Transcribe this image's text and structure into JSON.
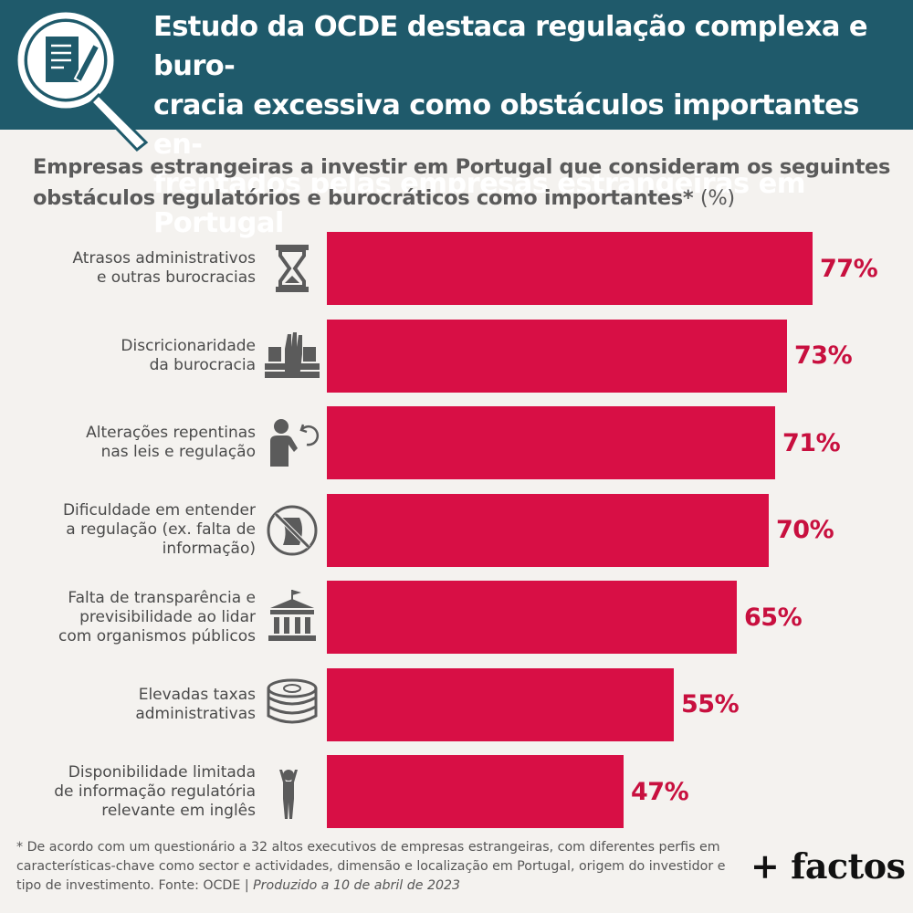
{
  "header": {
    "title": "Estudo da OCDE destaca regulação complexa e burocracia excessiva como obstáculos importantes enfrentados pelas empresas estrangeiras em Portugal",
    "title_lines": [
      "Estudo da OCDE destaca regulação complexa e buro-",
      "cracia excessiva como obstáculos importantes en-",
      "frentados pelas empresas estrangeiras em Portugal"
    ],
    "icon": "magnifier-document-icon"
  },
  "chart_data": {
    "type": "bar",
    "orientation": "horizontal",
    "title": "Empresas estrangeiras a investir em Portugal que consideram os seguintes obstáculos regulatórios e burocráticos como importantes*",
    "title_lines": [
      "Empresas estrangeiras a investir em Portugal que consideram os seguintes",
      "obstáculos regulatórios e burocráticos como importantes*"
    ],
    "unit_label": "(%)",
    "xlim": [
      0,
      77
    ],
    "bar_color": "#d80f45",
    "value_color": "#c8103f",
    "categories": [
      "Atrasos administrativos\ne outras burocracias",
      "Discricionaridade\nda burocracia",
      "Alterações repentinas\nnas leis e regulação",
      "Dificuldade em entender\na regulação (ex. falta de\ninformação)",
      "Falta de transparência e\nprevisibilidade ao lidar\ncom organismos públicos",
      "Elevadas taxas\nadministrativas",
      "Disponibilidade limitada\nde informação regulatória\nrelevante em inglês"
    ],
    "values": [
      77,
      73,
      71,
      70,
      65,
      55,
      47
    ],
    "value_labels": [
      "77%",
      "73%",
      "71%",
      "70%",
      "65%",
      "55%",
      "47%"
    ],
    "icons": [
      "hourglass-icon",
      "raised-hand-books-icon",
      "person-rotate-icon",
      "no-document-icon",
      "government-building-icon",
      "coins-icon",
      "confused-person-icon"
    ]
  },
  "footnote": {
    "main": "* De acordo com um questionário a 32 altos executivos de empresas estrangeiras, com diferentes perfis em características-chave como sector e actividades, dimensão e localização em Portugal, origem do investidor e tipo de investimento. Fonte: OCDE | ",
    "produced": "Produzido a 10 de abril de 2023"
  },
  "brand": {
    "name": "+ factos"
  },
  "colors": {
    "header_bg": "#1f5a6b",
    "page_bg": "#f4f2ef",
    "icon_gray": "#5b5b5b"
  }
}
